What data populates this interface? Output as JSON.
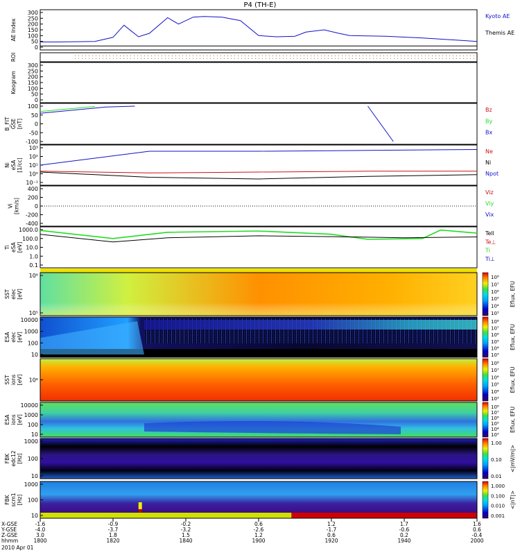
{
  "title": "P4 (TH-E)",
  "date": "2010 Apr 01",
  "colors": {
    "blue": "#1010c8",
    "green": "#22dd22",
    "red": "#cc1111",
    "black": "#000000"
  },
  "time_axis": {
    "ticks": [
      "1800",
      "1820",
      "1840",
      "1900",
      "1920",
      "1940",
      "2000"
    ],
    "rows": [
      {
        "label": "X-GSE",
        "values": [
          "-1.6",
          "-0.9",
          "-0.2",
          "0.6",
          "1.2",
          "1.7",
          "1.6"
        ]
      },
      {
        "label": "Y-GSE",
        "values": [
          "-4.0",
          "-3.7",
          "-3.2",
          "-2.6",
          "-1.7",
          "-0.6",
          "0.6"
        ]
      },
      {
        "label": "Z-GSE",
        "values": [
          "3.0",
          "1.8",
          "1.5",
          "1.2",
          "0.6",
          "0.2",
          "-0.4"
        ]
      },
      {
        "label": "hhmm",
        "values": [
          "1800",
          "1820",
          "1840",
          "1900",
          "1920",
          "1940",
          "2000"
        ]
      }
    ]
  },
  "panels": [
    {
      "name": "ae",
      "ylabel": [
        "AE Index"
      ],
      "ticks": [
        "300",
        "250",
        "200",
        "150",
        "100",
        "50",
        "0"
      ],
      "legend": [
        "Kyoto AE",
        "Themis AE"
      ]
    },
    {
      "name": "roi",
      "ylabel": [
        "ROI"
      ],
      "ticks": [],
      "legend": []
    },
    {
      "name": "keogram",
      "ylabel": [
        "Keogram"
      ],
      "ticks": [
        "300",
        "250",
        "200",
        "150",
        "100",
        "50",
        "0"
      ],
      "legend": []
    },
    {
      "name": "bfit",
      "ylabel": [
        "B_FIT",
        "GSE",
        "[nT]"
      ],
      "ticks": [
        "100",
        "50",
        "0",
        "-50",
        "-100"
      ],
      "legend": [
        "Bz",
        "By",
        "Bx"
      ]
    },
    {
      "name": "ni",
      "ylabel": [
        "Ni",
        "eSA",
        "[1/cc]"
      ],
      "ticks": [
        "10³",
        "10²",
        "10¹",
        "10⁰",
        "10⁻¹"
      ],
      "legend": [
        "Ne",
        "Ni",
        "Npot"
      ]
    },
    {
      "name": "vi",
      "ylabel": [
        "Vi",
        "[km/s]"
      ],
      "ticks": [
        "400",
        "200",
        "0",
        "-200",
        "-400"
      ],
      "legend": [
        "Viz",
        "Viy",
        "Vix"
      ]
    },
    {
      "name": "ti",
      "ylabel": [
        "Ti",
        "eSA",
        "[eV]"
      ],
      "ticks": [
        "1000.0",
        "100.0",
        "10.0",
        "1.0",
        "0.1"
      ],
      "legend": [
        "Tell",
        "Te⊥",
        "Ti",
        "Ti⊥"
      ]
    },
    {
      "name": "sst_e",
      "ylabel": [
        "SST",
        "elec",
        "[eV]"
      ],
      "ticks": [
        "10⁶",
        "10⁵"
      ],
      "legend": [],
      "cbar_label": "Eflux, EFU",
      "cbar_ticks": [
        "10⁸",
        "10⁷",
        "10⁶",
        "10⁵",
        "10⁴",
        "10³"
      ]
    },
    {
      "name": "esa_e",
      "ylabel": [
        "ESA",
        "elec",
        "[eV]"
      ],
      "ticks": [
        "10000",
        "1000",
        "100",
        "10"
      ],
      "legend": [],
      "cbar_label": "Eflux, EFU",
      "cbar_ticks": [
        "10⁸",
        "10⁷",
        "10⁶",
        "10⁵",
        "10⁴",
        "10³"
      ]
    },
    {
      "name": "sst_i",
      "ylabel": [
        "SST",
        "ions",
        "[eV]"
      ],
      "ticks": [
        "10⁶"
      ],
      "legend": [],
      "cbar_label": "Eflux, EFU",
      "cbar_ticks": [
        "10⁸",
        "10⁷",
        "10⁶",
        "10⁵",
        "10⁴",
        "10³"
      ]
    },
    {
      "name": "esa_i",
      "ylabel": [
        "ESA",
        "ions",
        "[eV]"
      ],
      "ticks": [
        "10000",
        "1000",
        "100",
        "10"
      ],
      "legend": [],
      "cbar_label": "Eflux, EFU",
      "cbar_ticks": [
        "10⁸",
        "10⁷",
        "10⁶",
        "10⁵",
        "10⁴",
        "10³"
      ]
    },
    {
      "name": "fbk_e",
      "ylabel": [
        "FBK",
        "edc12",
        "[Hz]"
      ],
      "ticks": [
        "1000",
        "100",
        "10"
      ],
      "legend": [],
      "cbar_label": "<|mV/m|>",
      "cbar_ticks": [
        "1.00",
        "0.10",
        "0.01"
      ]
    },
    {
      "name": "fbk_b",
      "ylabel": [
        "FBK",
        "scm1",
        "[Hz]"
      ],
      "ticks": [
        "1000",
        "100",
        "10"
      ],
      "legend": [],
      "cbar_label": "<|nT|>",
      "cbar_ticks": [
        "1.000",
        "0.100",
        "0.010",
        "0.001"
      ]
    }
  ],
  "chart_data": [
    {
      "type": "line",
      "title": "AE Index",
      "x_range": [
        "1800",
        "2000"
      ],
      "ylim": [
        0,
        300
      ],
      "series": [
        {
          "name": "Kyoto AE",
          "x": [
            1800,
            1805,
            1815,
            1820,
            1823,
            1825,
            1827,
            1830,
            1835,
            1838,
            1842,
            1845,
            1850,
            1855,
            1900,
            1905,
            1910,
            1913,
            1918,
            1922,
            1925,
            1935,
            1945,
            1955,
            2000
          ],
          "values": [
            45,
            45,
            50,
            85,
            190,
            140,
            90,
            120,
            255,
            200,
            260,
            265,
            260,
            230,
            100,
            90,
            95,
            130,
            150,
            120,
            100,
            95,
            80,
            60,
            50
          ]
        },
        {
          "name": "Themis AE",
          "x": [
            1800,
            1830,
            1900,
            1930,
            2000
          ],
          "values": [
            10,
            10,
            10,
            10,
            10
          ]
        }
      ]
    },
    {
      "type": "line",
      "title": "B_FIT GSE",
      "ylim": [
        -100,
        100
      ],
      "series": [
        {
          "name": "Bx",
          "x": [
            1800,
            1818,
            1826
          ],
          "values": [
            60,
            95,
            100
          ]
        },
        {
          "name": "By",
          "x": [
            1800,
            1815
          ],
          "values": [
            70,
            98
          ]
        },
        {
          "name": "Bz",
          "x": [
            1930,
            1937
          ],
          "values": [
            100,
            -100
          ]
        }
      ]
    },
    {
      "type": "line",
      "title": "Ni eSA",
      "ylim": [
        -1,
        3
      ],
      "series": [
        {
          "name": "Ne",
          "x": [
            1800,
            1830,
            1900,
            1930,
            2000
          ],
          "values": [
            1,
            2.6,
            2.6,
            2.7,
            2.8
          ]
        },
        {
          "name": "Ni",
          "x": [
            1800,
            1830,
            1900,
            1930,
            2000
          ],
          "values": [
            0.2,
            -0.4,
            -0.6,
            -0.3,
            -0.1
          ]
        },
        {
          "name": "Npot",
          "x": [
            1800,
            1830,
            1900,
            1930,
            2000
          ],
          "values": [
            0.3,
            0.1,
            0.2,
            0.3,
            0.3
          ]
        }
      ]
    },
    {
      "type": "line",
      "title": "Ti eSA",
      "ylim": [
        0.1,
        1000
      ],
      "series": [
        {
          "name": "Ti",
          "x": [
            1800,
            1820,
            1835,
            1900,
            1920,
            1930,
            1945,
            1950,
            2000
          ],
          "values": [
            800,
            100,
            500,
            700,
            300,
            80,
            100,
            900,
            400
          ]
        },
        {
          "name": "Tell",
          "x": [
            1800,
            1820,
            1835,
            1900,
            1920,
            1940,
            2000
          ],
          "values": [
            300,
            40,
            120,
            200,
            160,
            120,
            150
          ]
        }
      ]
    }
  ]
}
